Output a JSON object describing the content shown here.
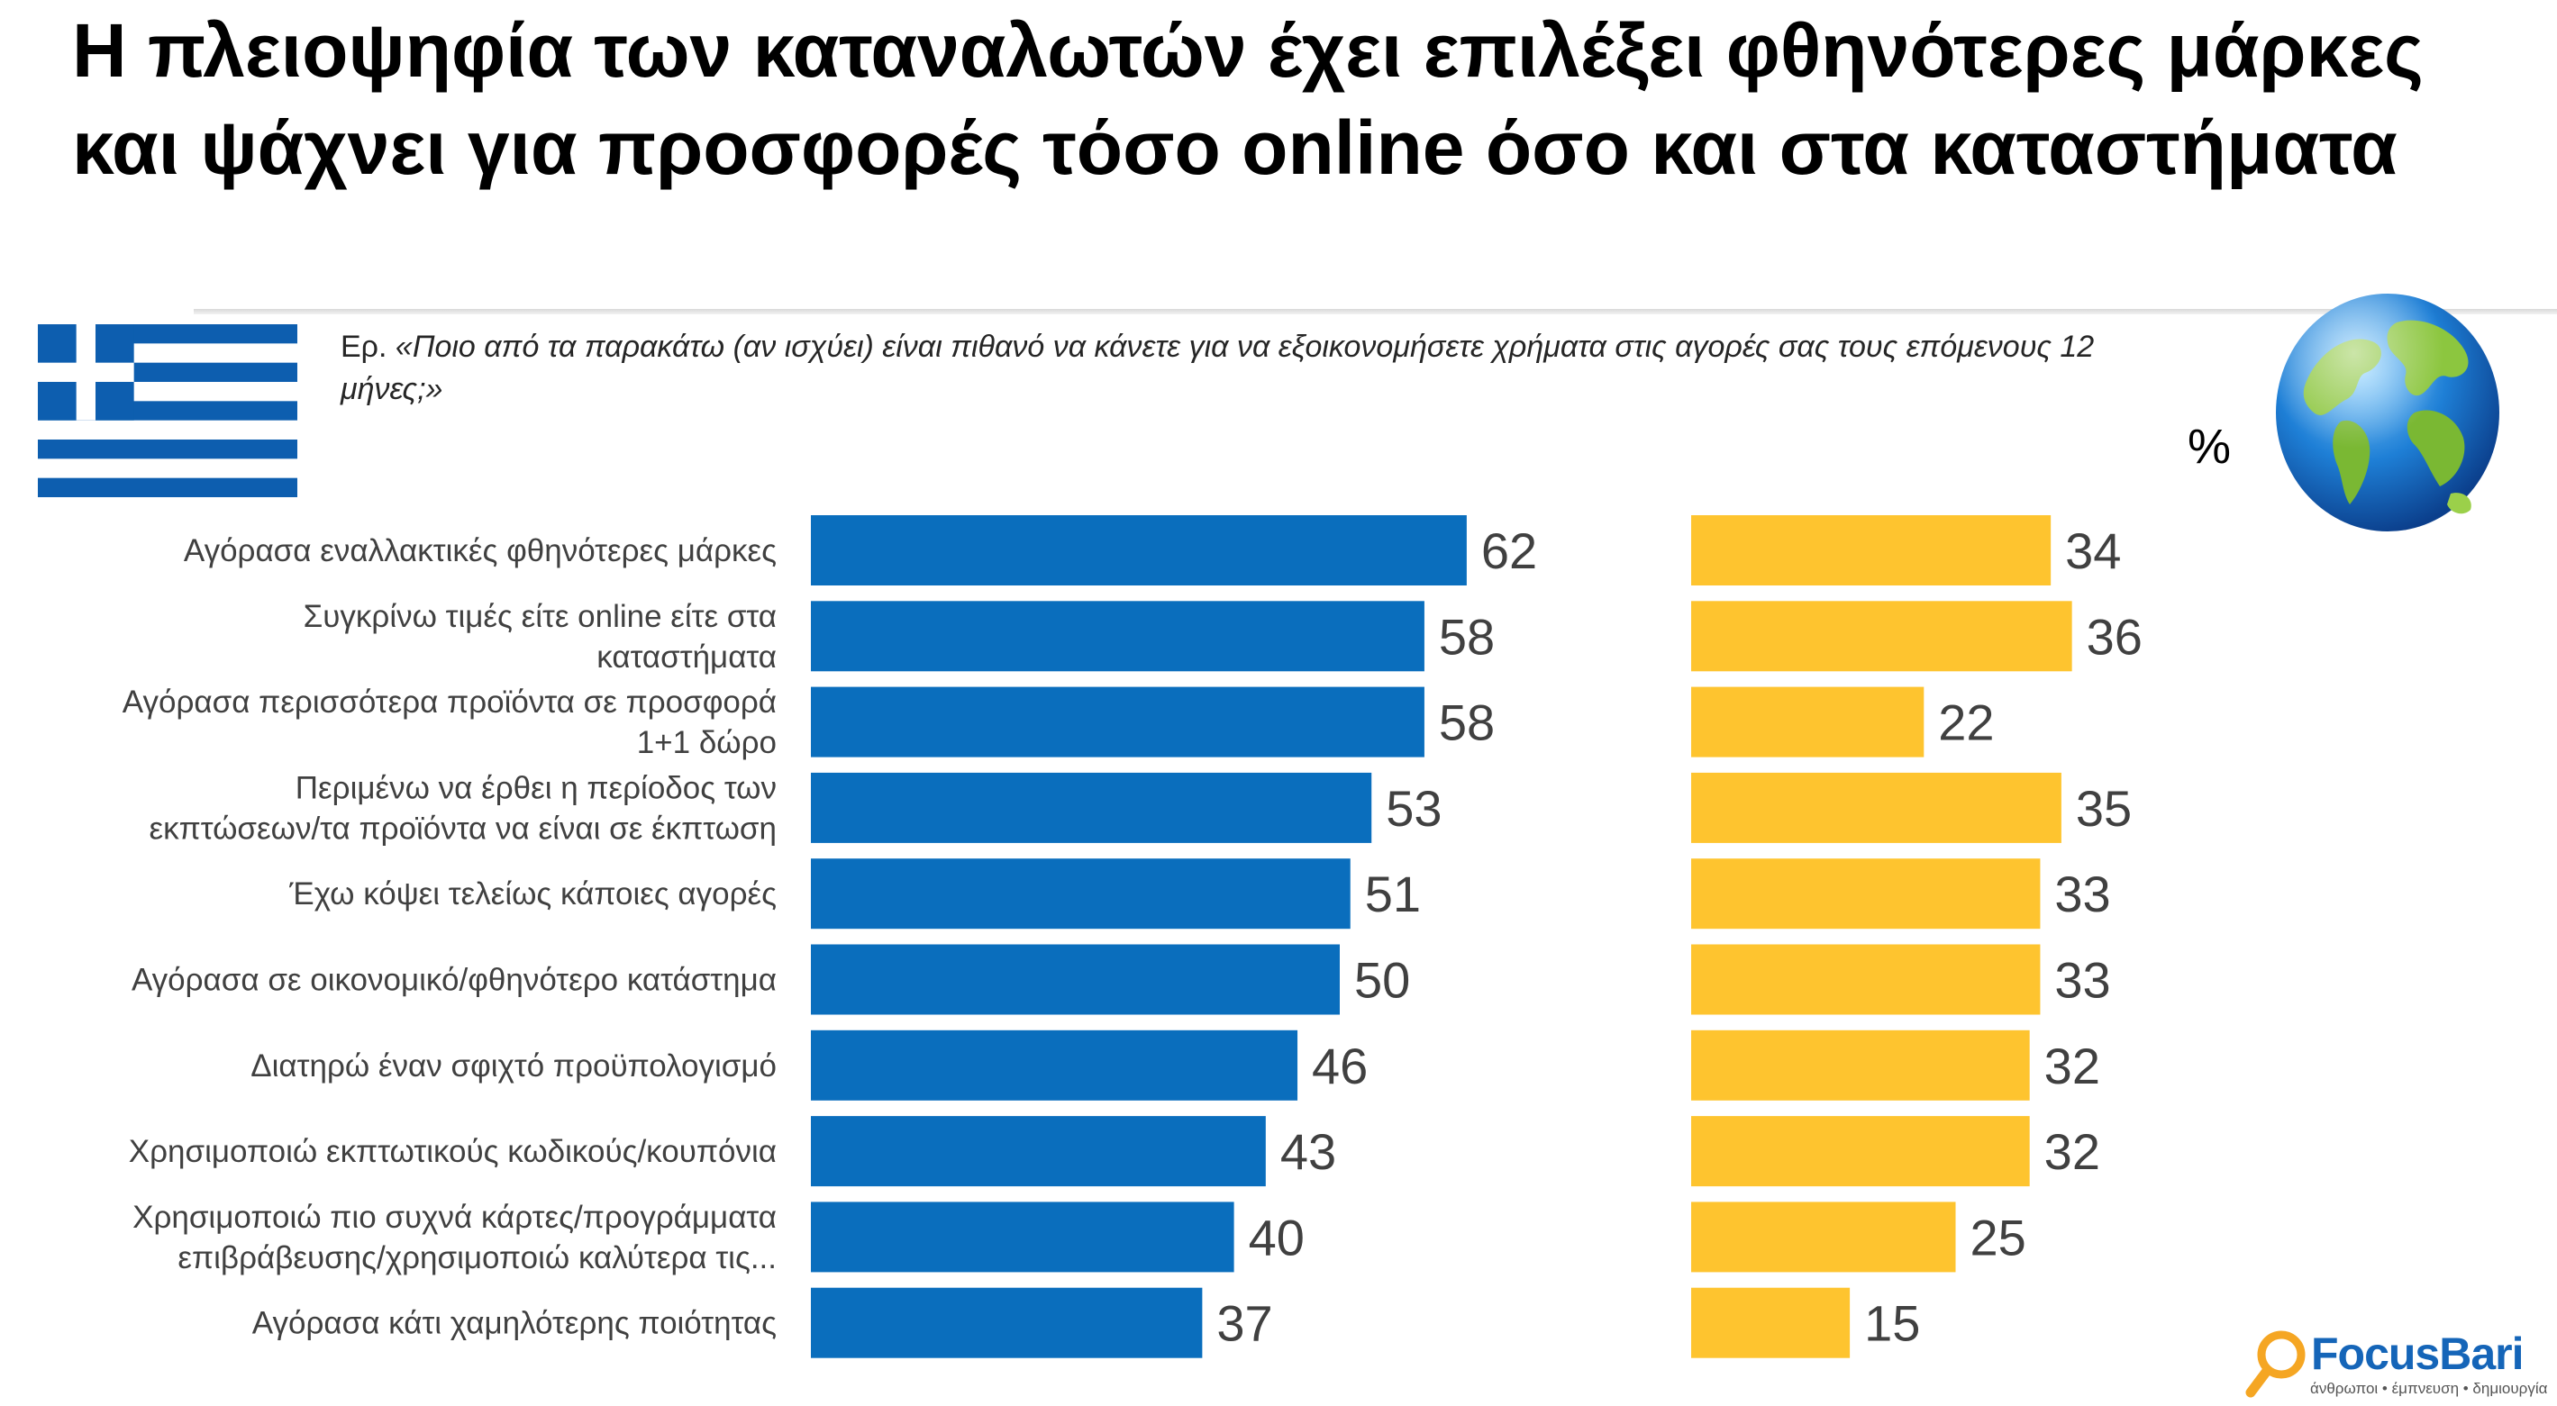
{
  "title": "Η πλειοψηφία των καταναλωτών έχει επιλέξει φθηνότερες μάρκες και ψάχνει για προσφορές τόσο online όσο και στα καταστήματα",
  "question": {
    "prefix": "Ερ.",
    "text": "«Ποιο από τα παρακάτω (αν ισχύει) είναι πιθανό να κάνετε για να εξοικονομήσετε χρήματα στις αγορές σας τους επόμενους 12 μήνες;»"
  },
  "unit_label": "%",
  "logo": {
    "name": "FocusBari",
    "tagline": "άνθρωποι • έμπνευση • δημιουργία"
  },
  "colors": {
    "greece": "#0a6ebd",
    "global": "#fec42f",
    "text": "#404040"
  },
  "icons": {
    "flag": "greece-flag-icon",
    "globe": "globe-icon",
    "logo": "magnifier-logo-icon"
  },
  "chart_data": {
    "type": "bar",
    "orientation": "horizontal",
    "categories": [
      [
        "Αγόρασα εναλλακτικές φθηνότερες μάρκες"
      ],
      [
        "Συγκρίνω τιμές είτε online είτε στα",
        "καταστήματα"
      ],
      [
        "Αγόρασα περισσότερα προϊόντα σε προσφορά",
        "1+1 δώρο"
      ],
      [
        "Περιμένω να έρθει η περίοδος των",
        "εκπτώσεων/τα προϊόντα να είναι σε έκπτωση"
      ],
      [
        "Έχω κόψει τελείως κάποιες αγορές"
      ],
      [
        "Αγόρασα σε οικονομικό/φθηνότερο κατάστημα"
      ],
      [
        "Διατηρώ έναν σφιχτό προϋπολογισμό"
      ],
      [
        "Χρησιμοποιώ εκπτωτικούς κωδικούς/κουπόνια"
      ],
      [
        "Χρησιμοποιώ πιο συχνά κάρτες/προγράμματα",
        "επιβράβευσης/χρησιμοποιώ καλύτερα τις..."
      ],
      [
        "Αγόρασα κάτι χαμηλότερης ποιότητας"
      ]
    ],
    "series": [
      {
        "values": [
          62,
          58,
          58,
          53,
          51,
          50,
          46,
          43,
          40,
          37
        ],
        "color": "#0a6ebd"
      },
      {
        "values": [
          34,
          36,
          22,
          35,
          33,
          33,
          32,
          32,
          25,
          15
        ],
        "color": "#fec42f"
      }
    ],
    "xlim": [
      0,
      100
    ],
    "grid": false,
    "legend": "none"
  }
}
